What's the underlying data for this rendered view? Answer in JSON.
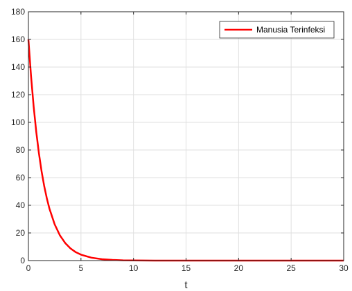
{
  "chart_data": {
    "type": "line",
    "title": "",
    "xlabel": "t",
    "ylabel": "",
    "xlim": [
      0,
      30
    ],
    "ylim": [
      0,
      180
    ],
    "xticks": [
      0,
      5,
      10,
      15,
      20,
      25,
      30
    ],
    "yticks": [
      0,
      20,
      40,
      60,
      80,
      100,
      120,
      140,
      160,
      180
    ],
    "grid": true,
    "legend_position": "top-right",
    "series": [
      {
        "name": "Manusia Terinfeksi",
        "color": "#ff0000",
        "x": [
          0,
          0.25,
          0.5,
          0.75,
          1,
          1.25,
          1.5,
          1.75,
          2,
          2.5,
          3,
          3.5,
          4,
          4.5,
          5,
          6,
          7,
          8,
          9,
          10,
          12,
          14,
          16,
          18,
          20,
          22,
          24,
          26,
          28,
          30
        ],
        "y": [
          160,
          133.5,
          111.4,
          92.9,
          77.6,
          64.7,
          54.0,
          45.1,
          37.6,
          26.2,
          18.2,
          12.7,
          8.8,
          6.1,
          4.3,
          2.1,
          1.0,
          0.5,
          0.2,
          0.1,
          0.03,
          0.01,
          0,
          0,
          0,
          0,
          0,
          0,
          0,
          0
        ]
      }
    ]
  },
  "colors": {
    "axis": "#262626",
    "grid": "#dfdfdf",
    "background": "#ffffff"
  }
}
